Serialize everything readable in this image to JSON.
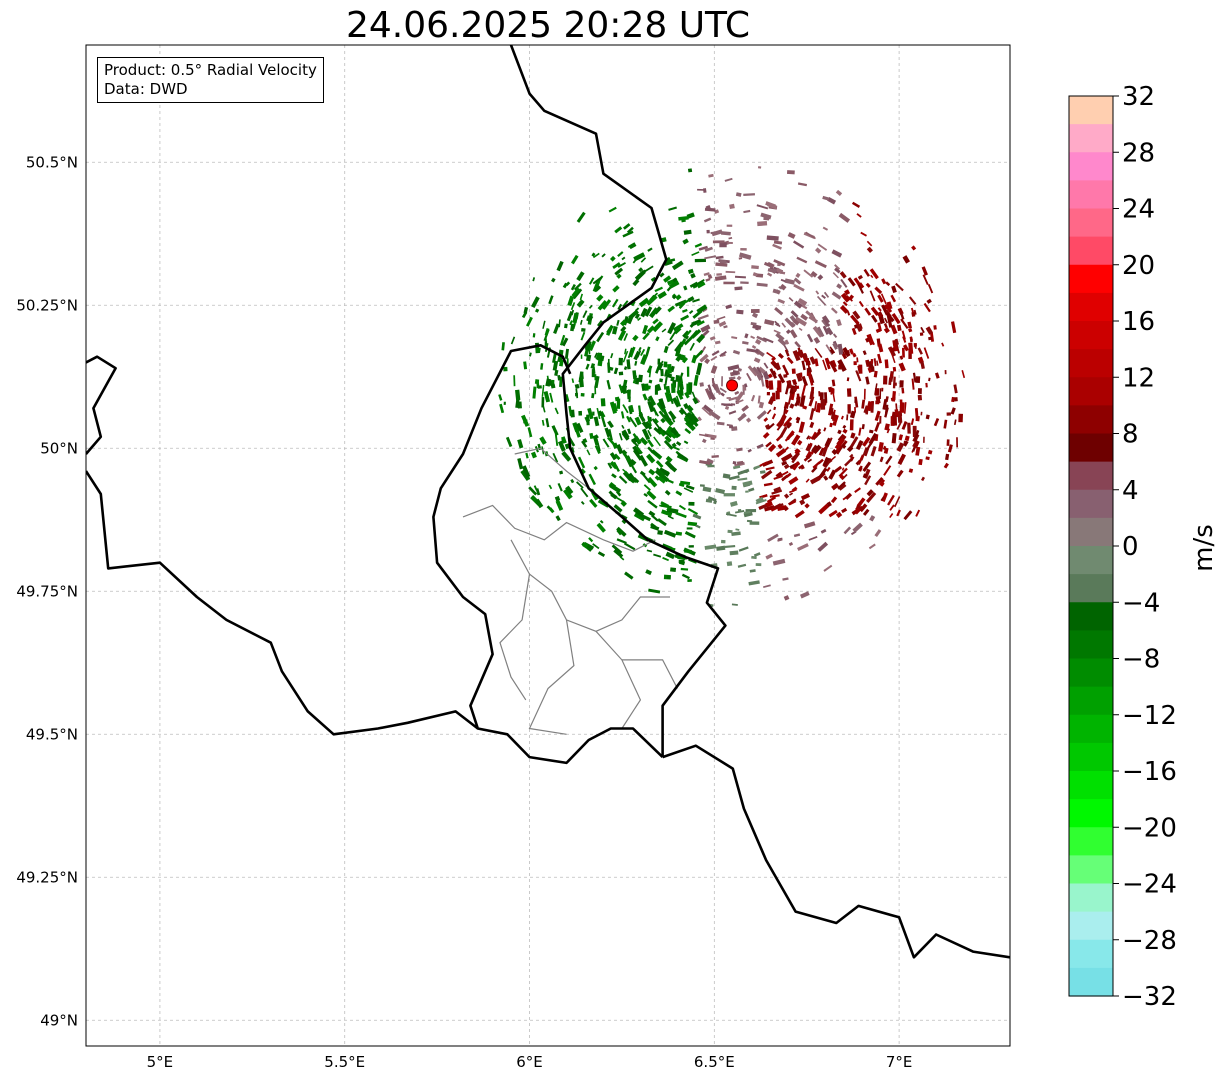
{
  "title": "24.06.2025 20:28 UTC",
  "info": {
    "product": "Product: 0.5° Radial Velocity",
    "data": "Data: DWD"
  },
  "map": {
    "lon_range": [
      4.8,
      7.3
    ],
    "lat_range": [
      48.955,
      50.705
    ],
    "lon_ticks": [
      5.0,
      5.5,
      6.0,
      6.5,
      7.0
    ],
    "lon_tick_labels": [
      "5°E",
      "5.5°E",
      "6°E",
      "6.5°E",
      "7°E"
    ],
    "lat_ticks": [
      49.0,
      49.25,
      49.5,
      49.75,
      50.0,
      50.25,
      50.5
    ],
    "lat_tick_labels": [
      "49°N",
      "49.25°N",
      "49.5°N",
      "49.75°N",
      "50°N",
      "50.25°N",
      "50.5°N"
    ],
    "radar_site": {
      "lon": 6.548,
      "lat": 50.11
    },
    "colors": {
      "border": "#000000",
      "admin": "#808080",
      "grid": "#bdbdbd",
      "site": "#ff0000"
    }
  },
  "colorbar": {
    "unit": "m/s",
    "min": -32,
    "max": 32,
    "step": 2,
    "tick_values": [
      32,
      28,
      24,
      20,
      16,
      12,
      8,
      4,
      0,
      -4,
      -8,
      -12,
      -16,
      -20,
      -24,
      -28,
      -32
    ],
    "tick_labels": [
      "32",
      "28",
      "24",
      "20",
      "16",
      "12",
      "8",
      "4",
      "0",
      "−4",
      "−8",
      "−12",
      "−16",
      "−20",
      "−24",
      "−28",
      "−32"
    ],
    "colors": [
      "#ffcfb0",
      "#ffaac8",
      "#ff88cc",
      "#ff78aa",
      "#ff6888",
      "#ff4a66",
      "#ff0000",
      "#e00000",
      "#cc0000",
      "#bb0000",
      "#aa0000",
      "#8e0000",
      "#6e0000",
      "#884455",
      "#886070",
      "#887878",
      "#708a70",
      "#5a7a5a",
      "#006400",
      "#007800",
      "#008c00",
      "#00a000",
      "#00b400",
      "#00c800",
      "#00e000",
      "#00f800",
      "#30ff30",
      "#66ff77",
      "#99f5cc",
      "#aaeeee",
      "#88e8ea",
      "#77e0e6"
    ]
  }
}
